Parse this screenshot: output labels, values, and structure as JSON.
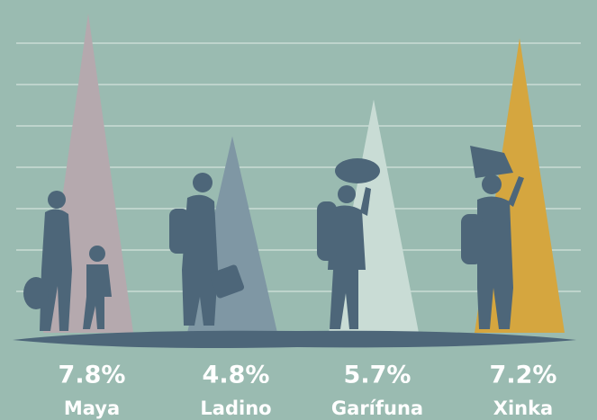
{
  "chart_data": {
    "type": "triangle",
    "categories": [
      "Maya",
      "Ladino",
      "Garífuna",
      "Xinka"
    ],
    "values": [
      7.8,
      4.8,
      5.7,
      7.2
    ],
    "value_labels": [
      "7.8%",
      "4.8%",
      "5.7%",
      "7.2%"
    ],
    "colors": [
      "#b5a9ae",
      "#7f97a4",
      "#c9dcd5",
      "#d5a63f"
    ],
    "ylim": [
      0,
      8.13
    ]
  }
}
